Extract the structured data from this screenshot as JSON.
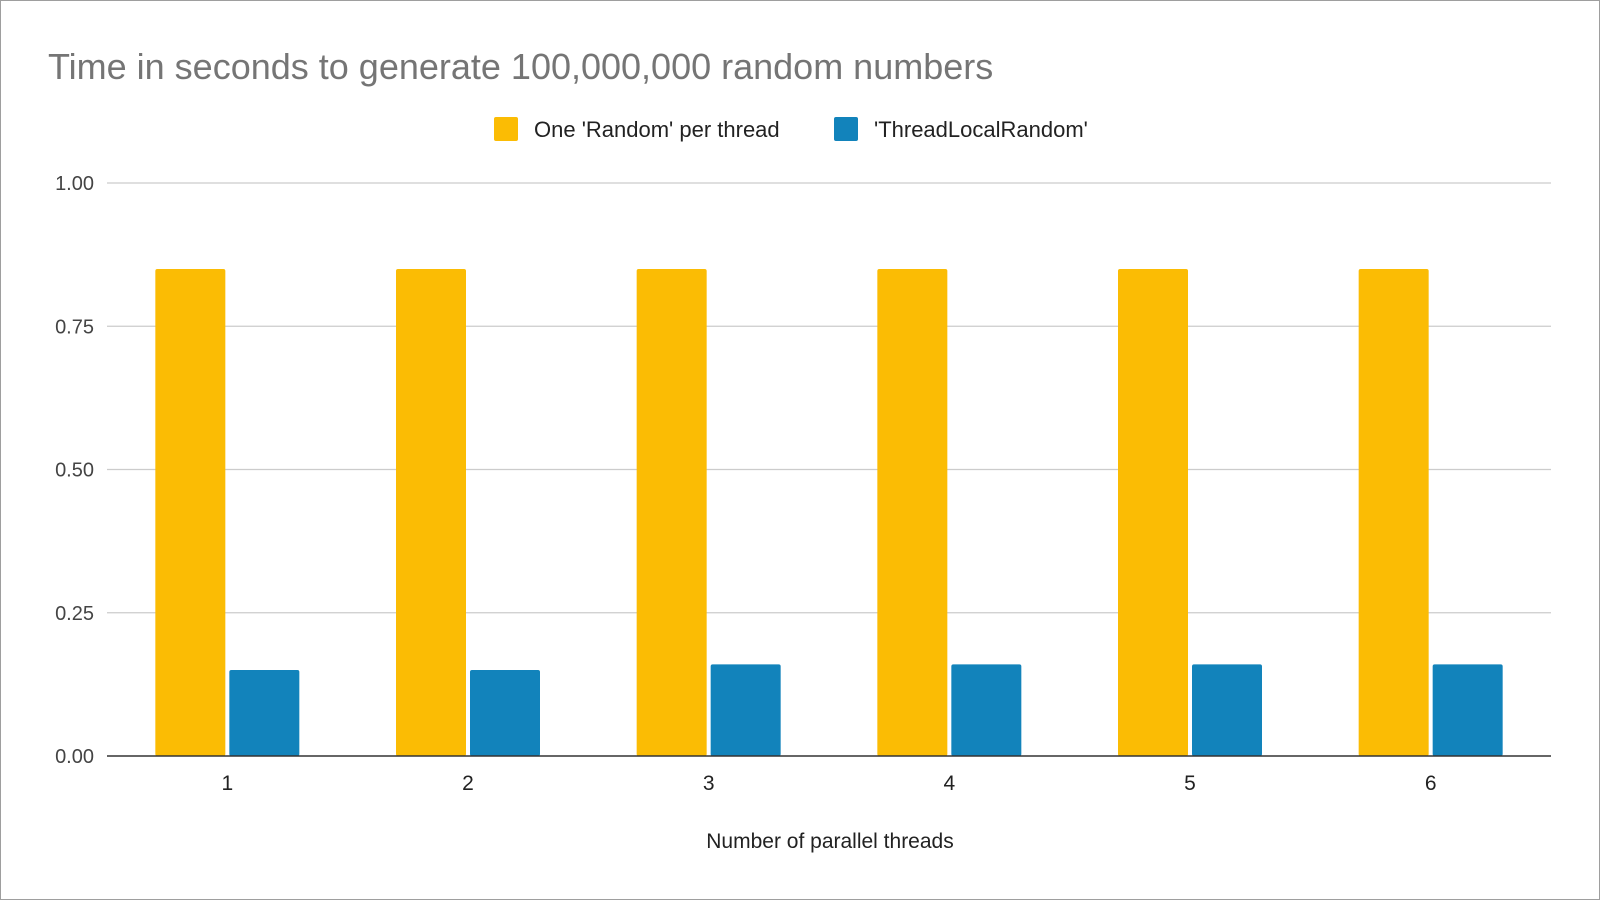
{
  "chart_data": {
    "type": "bar",
    "title": "Time in seconds to generate 100,000,000 random numbers",
    "xlabel": "Number of parallel threads",
    "ylabel": "",
    "categories": [
      "1",
      "2",
      "3",
      "4",
      "5",
      "6"
    ],
    "series": [
      {
        "name": "One 'Random' per thread",
        "color": "#fbbc04",
        "values": [
          0.85,
          0.85,
          0.85,
          0.85,
          0.85,
          0.85
        ]
      },
      {
        "name": "'ThreadLocalRandom'",
        "color": "#1283bb",
        "values": [
          0.15,
          0.15,
          0.16,
          0.16,
          0.16,
          0.16
        ]
      }
    ],
    "ylim": [
      0,
      1
    ],
    "yticks": [
      "0.00",
      "0.25",
      "0.50",
      "0.75",
      "1.00"
    ],
    "grid": true,
    "legend": "top-center"
  }
}
